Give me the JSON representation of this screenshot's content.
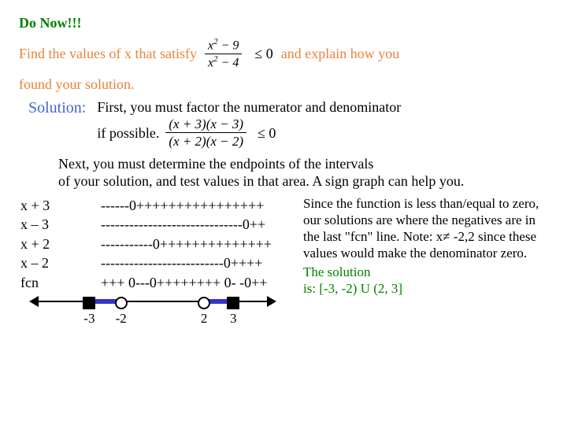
{
  "title": "Do Now!!!   ",
  "prompt_a": "Find the values of x that satisfy",
  "prompt_b": "and explain how you",
  "prompt_c": "found your solution.",
  "eq1": {
    "num": "x² − 9",
    "den": "x² − 4",
    "rhs": "≤ 0"
  },
  "solution_label": "Solution:",
  "step1a": "First, you must factor the numerator and denominator",
  "step1b": "if possible.",
  "eq2": {
    "num": "(x + 3)(x − 3)",
    "den": "(x + 2)(x − 2)",
    "rhs": "≤ 0"
  },
  "step2a": "Next, you must determine the endpoints of the intervals",
  "step2b": "of your solution, and test values in that area.  A sign graph can help you.",
  "sign_rows": [
    {
      "label": "x + 3",
      "signs": "------0++++++++++++++++"
    },
    {
      "label": "x – 3",
      "signs": "------------------------------0++"
    },
    {
      "label": "x + 2",
      "signs": "-----------0++++++++++++++"
    },
    {
      "label": "x – 2",
      "signs": "--------------------------0++++"
    },
    {
      "label": "fcn",
      "signs": "+++ 0---0++++++++ 0- -0++"
    }
  ],
  "explain1": "Since the function is less than/equal to zero, our solutions are where the negatives are in the last \"fcn\" line.  Note:  x≠ -2,2 since these values would make the denominator zero.",
  "answer1": "The solution",
  "answer2": " is:  [-3, -2) U (2, 3]",
  "numberline": {
    "ticks": [
      {
        "pos_pct": 24,
        "label": "-3",
        "type": "closed"
      },
      {
        "pos_pct": 37,
        "label": "-2",
        "type": "open"
      },
      {
        "pos_pct": 71,
        "label": "2",
        "type": "open"
      },
      {
        "pos_pct": 83,
        "label": "3",
        "type": "closed"
      }
    ],
    "segments": [
      {
        "left_pct": 24,
        "right_pct": 37
      },
      {
        "left_pct": 71,
        "right_pct": 83
      }
    ]
  }
}
